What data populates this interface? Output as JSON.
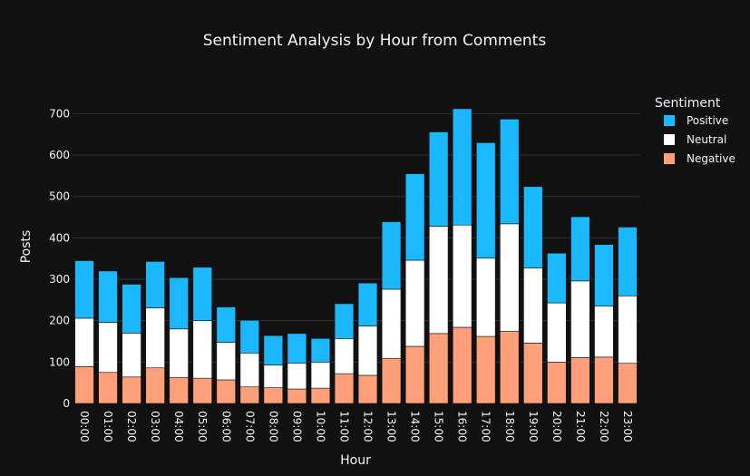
{
  "chart_data": {
    "type": "bar",
    "stacked": true,
    "title": "Sentiment Analysis by Hour from Comments",
    "xlabel": "Hour",
    "ylabel": "Posts",
    "ylim": [
      0,
      760
    ],
    "yticks": [
      0,
      100,
      200,
      300,
      400,
      500,
      600,
      700
    ],
    "grid": true,
    "legend_title": "Sentiment",
    "legend_position": "right",
    "categories": [
      "00:00",
      "01:00",
      "02:00",
      "03:00",
      "04:00",
      "05:00",
      "06:00",
      "07:00",
      "08:00",
      "09:00",
      "10:00",
      "11:00",
      "12:00",
      "13:00",
      "14:00",
      "15:00",
      "16:00",
      "17:00",
      "18:00",
      "19:00",
      "20:00",
      "21:00",
      "22:00",
      "23:00"
    ],
    "series": [
      {
        "name": "Negative",
        "color": "#ffa07a",
        "values": [
          89,
          75,
          64,
          86,
          63,
          61,
          57,
          40,
          38,
          35,
          37,
          72,
          68,
          109,
          138,
          169,
          184,
          162,
          174,
          146,
          100,
          111,
          112,
          97
        ]
      },
      {
        "name": "Neutral",
        "color": "#ffffff",
        "values": [
          117,
          121,
          106,
          145,
          117,
          139,
          91,
          82,
          55,
          62,
          63,
          85,
          119,
          167,
          208,
          259,
          247,
          189,
          260,
          181,
          143,
          185,
          123,
          163
        ]
      },
      {
        "name": "Positive",
        "color": "#1cb8ff",
        "values": [
          139,
          124,
          118,
          112,
          124,
          129,
          85,
          79,
          71,
          72,
          57,
          84,
          104,
          163,
          209,
          228,
          281,
          279,
          253,
          197,
          120,
          155,
          149,
          166
        ]
      }
    ],
    "legend_order": [
      "Positive",
      "Neutral",
      "Negative"
    ],
    "colors": {
      "background": "#111111",
      "grid": "#283442",
      "text": "#f2f5fa"
    }
  }
}
